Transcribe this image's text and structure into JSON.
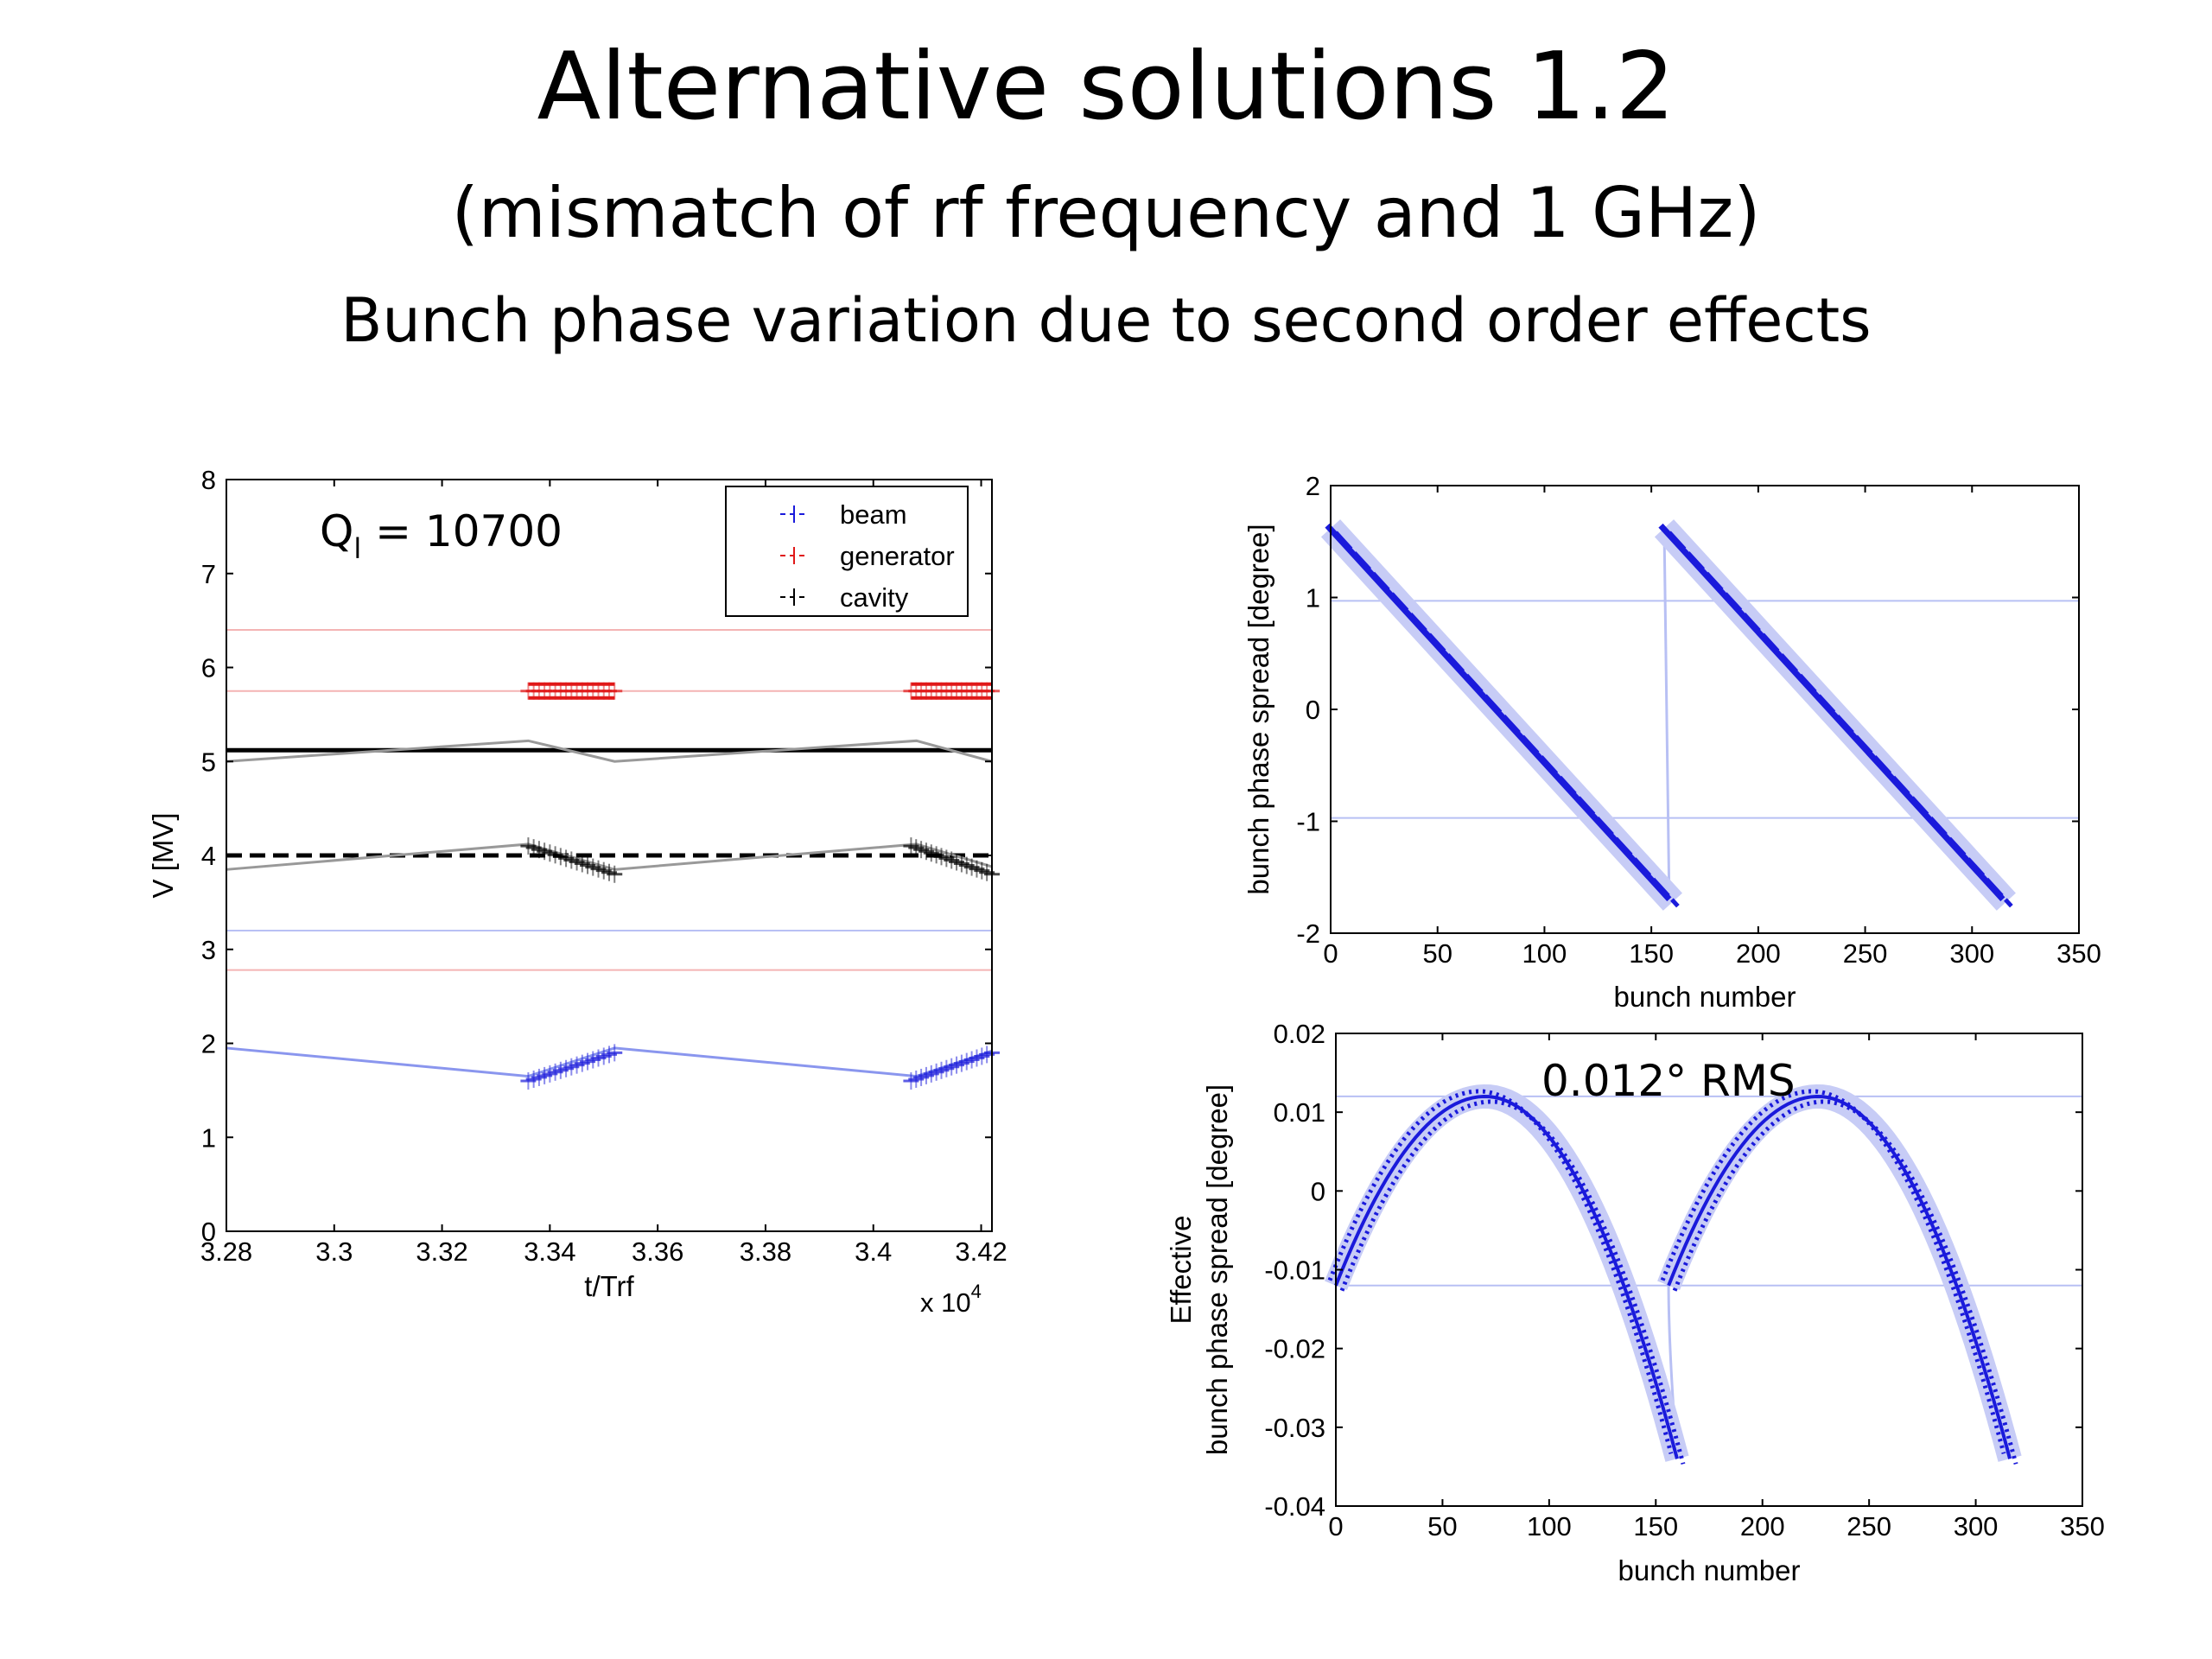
{
  "slide": {
    "title": "Alternative solutions 1.2",
    "subtitle": "(mismatch of rf frequency and 1 GHz)",
    "subtitle2": "Bunch phase variation due to second order effects"
  },
  "colors": {
    "beam": "#1a1adb",
    "generator": "#e01818",
    "cavity": "#000000",
    "ref_blue": "#b8c0f4",
    "ref_red": "#f4b4b4"
  },
  "chart_data": [
    {
      "type": "line",
      "annotation": {
        "main": "Q",
        "sub": "l",
        "rest": " = 10700"
      },
      "xlabel": "t/Trf",
      "ylabel": "V [MV]",
      "x_multiplier": "x 10",
      "x_multiplier_exp": "4",
      "xlim": [
        3.28,
        3.422
      ],
      "ylim": [
        0,
        8
      ],
      "xticks": [
        3.28,
        3.3,
        3.32,
        3.34,
        3.36,
        3.38,
        3.4,
        3.42
      ],
      "xtick_labels": [
        "3.28",
        "3.3",
        "3.32",
        "3.34",
        "3.36",
        "3.38",
        "3.4",
        "3.42"
      ],
      "yticks": [
        0,
        1,
        2,
        3,
        4,
        5,
        6,
        7,
        8
      ],
      "ytick_labels": [
        "0",
        "1",
        "2",
        "3",
        "4",
        "5",
        "6",
        "7",
        "8"
      ],
      "legend": {
        "position": "top-right",
        "entries": [
          "beam",
          "generator",
          "cavity"
        ]
      },
      "series": [
        {
          "name": "beam",
          "color": "beam",
          "x": [
            3.28,
            3.336,
            3.352,
            3.408,
            3.422
          ],
          "y": [
            1.95,
            1.65,
            1.95,
            1.65,
            1.92
          ],
          "bunch_trains": [
            {
              "x": [
                3.336,
                3.352
              ],
              "y": [
                1.6,
                1.9
              ]
            },
            {
              "x": [
                3.407,
                3.422
              ],
              "y": [
                1.6,
                1.9
              ]
            }
          ]
        },
        {
          "name": "generator",
          "color": "generator",
          "bunch_trains": [
            {
              "x": [
                3.336,
                3.352
              ],
              "y": [
                5.75,
                5.75
              ]
            },
            {
              "x": [
                3.407,
                3.422
              ],
              "y": [
                5.75,
                5.75
              ]
            }
          ]
        },
        {
          "name": "cavity",
          "color": "cavity",
          "x": [
            3.28,
            3.336,
            3.352,
            3.408,
            3.422
          ],
          "y": [
            3.85,
            4.12,
            3.85,
            4.12,
            3.88
          ],
          "bunch_trains": [
            {
              "x": [
                3.336,
                3.352
              ],
              "y": [
                4.1,
                3.8
              ]
            },
            {
              "x": [
                3.407,
                3.422
              ],
              "y": [
                4.1,
                3.8
              ]
            }
          ]
        },
        {
          "name": "",
          "color": "cavity",
          "style": "solid",
          "x": [
            3.28,
            3.336,
            3.352,
            3.408,
            3.422
          ],
          "y": [
            5.0,
            5.22,
            5.0,
            5.22,
            5.0
          ]
        }
      ],
      "reference_lines": [
        {
          "y": 5.12,
          "color": "cavity",
          "style": "solid-thick"
        },
        {
          "y": 4.0,
          "color": "cavity",
          "style": "dashed-thick"
        },
        {
          "y": 6.4,
          "color": "ref_red"
        },
        {
          "y": 5.75,
          "color": "ref_red"
        },
        {
          "y": 3.2,
          "color": "ref_blue"
        },
        {
          "y": 2.78,
          "color": "ref_red"
        }
      ],
      "grid": false
    },
    {
      "type": "scatter",
      "xlabel": "bunch number",
      "ylabel": "bunch phase spread [degree]",
      "xlim": [
        0,
        350
      ],
      "ylim": [
        -2,
        2
      ],
      "xticks": [
        0,
        50,
        100,
        150,
        200,
        250,
        300,
        350
      ],
      "xtick_labels": [
        "0",
        "50",
        "100",
        "150",
        "200",
        "250",
        "300",
        "350"
      ],
      "yticks": [
        -2,
        -1,
        0,
        1,
        2
      ],
      "ytick_labels": [
        "-2",
        "-1",
        "0",
        "1",
        "2"
      ],
      "series": [
        {
          "color": "beam",
          "segments": [
            {
              "x": [
                0,
                160
              ],
              "y": [
                1.62,
                -1.72
              ]
            },
            {
              "x": [
                156,
                316
              ],
              "y": [
                1.62,
                -1.72
              ]
            }
          ]
        }
      ],
      "reference_lines": [
        {
          "y": 0.97,
          "color": "ref_blue"
        },
        {
          "y": -0.97,
          "color": "ref_blue"
        }
      ],
      "grid": false
    },
    {
      "type": "scatter",
      "annotation": "0.012° RMS",
      "xlabel": "bunch number",
      "ylabel_line1": "Effective",
      "ylabel_line2": "bunch phase spread [degree]",
      "xlim": [
        0,
        350
      ],
      "ylim": [
        -0.04,
        0.02
      ],
      "xticks": [
        0,
        50,
        100,
        150,
        200,
        250,
        300,
        350
      ],
      "xtick_labels": [
        "0",
        "50",
        "100",
        "150",
        "200",
        "250",
        "300",
        "350"
      ],
      "yticks": [
        -0.04,
        -0.03,
        -0.02,
        -0.01,
        0,
        0.01,
        0.02
      ],
      "ytick_labels": [
        "-0.04",
        "-0.03",
        "-0.02",
        "-0.01",
        "0",
        "0.01",
        "0.02"
      ],
      "series": [
        {
          "color": "beam",
          "segments": [
            {
              "x_start": 0,
              "x_end": 160,
              "peak_x": 70,
              "peak_y": 0.012,
              "y_start": -0.012,
              "y_end": -0.034
            },
            {
              "x_start": 156,
              "x_end": 316,
              "peak_x": 226,
              "peak_y": 0.012,
              "y_start": -0.012,
              "y_end": -0.034
            }
          ]
        }
      ],
      "reference_lines": [
        {
          "y": 0.012,
          "color": "ref_blue"
        },
        {
          "y": -0.012,
          "color": "ref_blue"
        }
      ],
      "grid": false
    }
  ]
}
